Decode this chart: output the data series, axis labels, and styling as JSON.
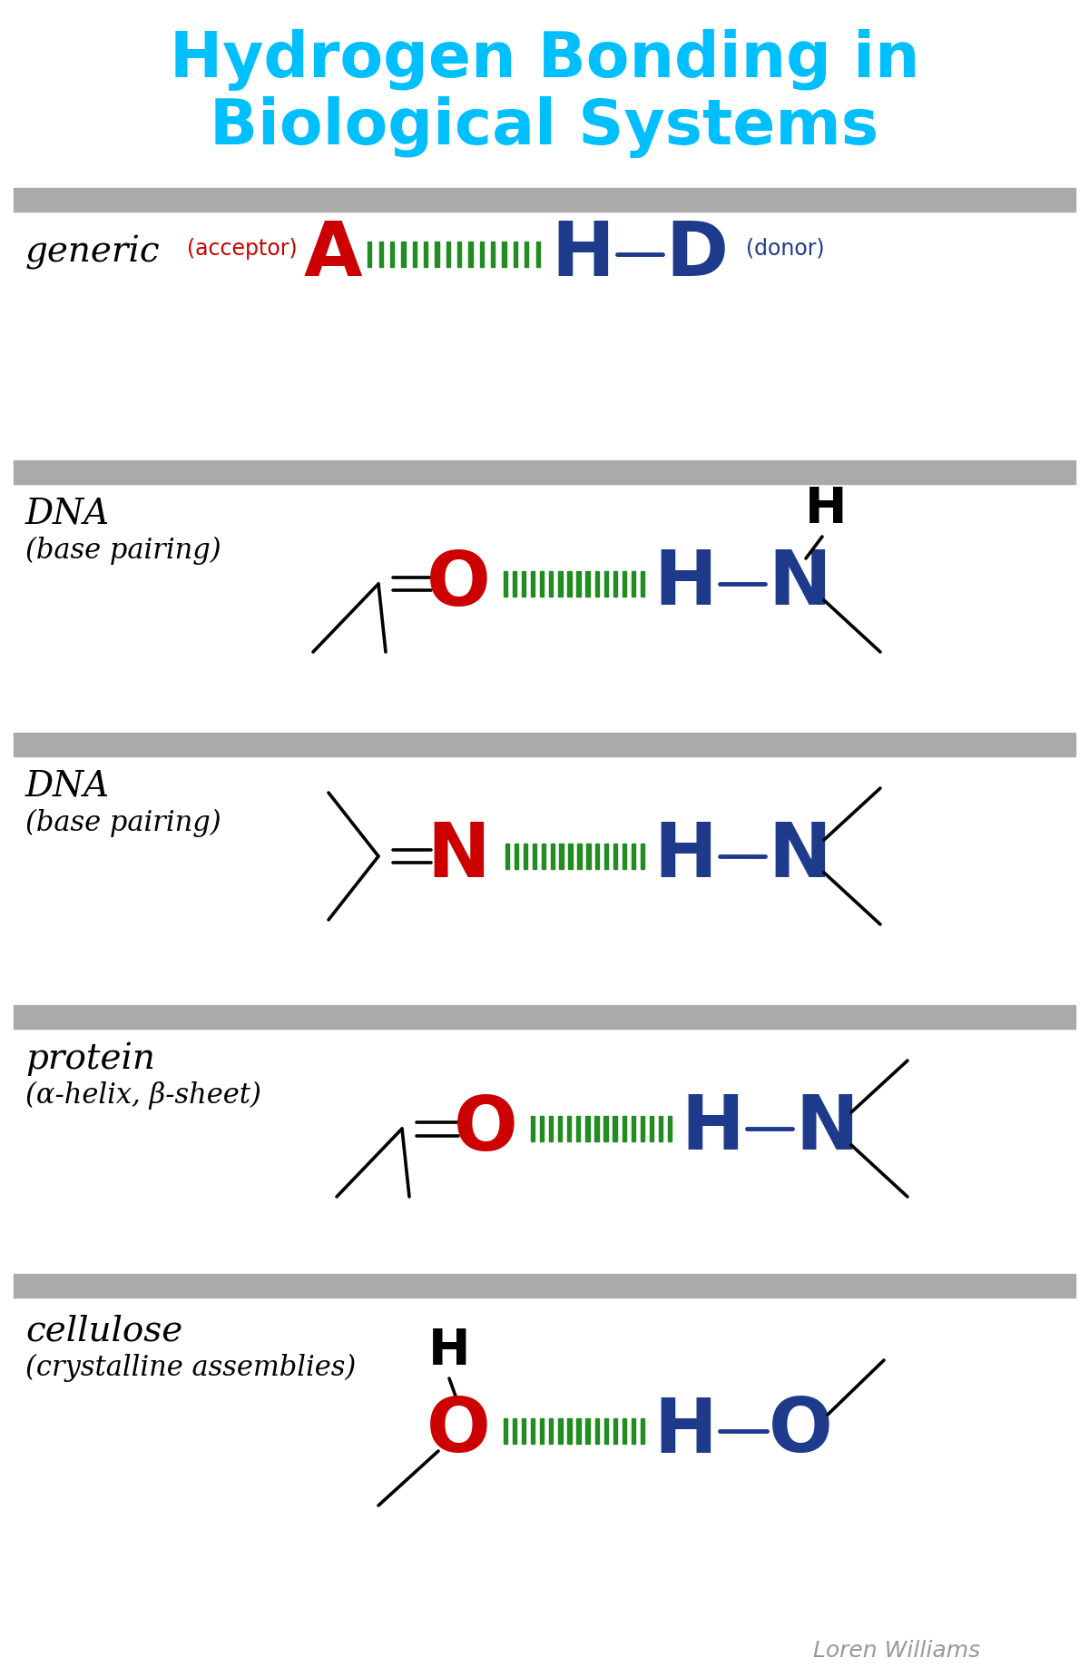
{
  "title_line1": "Hydrogen Bonding in",
  "title_line2": "Biological Systems",
  "title_color": "#00BFFF",
  "background_color": "#FFFFFF",
  "separator_color": "#AAAAAA",
  "acceptor_color": "#CC0000",
  "donor_color": "#1E3A8A",
  "hbond_color": "#228B22",
  "bond_color": "#000000",
  "author": "Loren Williams",
  "sections": [
    {
      "label": "generic",
      "sublabel": ""
    },
    {
      "label": "DNA",
      "sublabel": "(base pairing)"
    },
    {
      "label": "DNA",
      "sublabel": "(base pairing)"
    },
    {
      "label": "protein",
      "sublabel": "(α-helix, β-sheet)"
    },
    {
      "label": "cellulose",
      "sublabel": "(crystalline assemblies)"
    }
  ]
}
